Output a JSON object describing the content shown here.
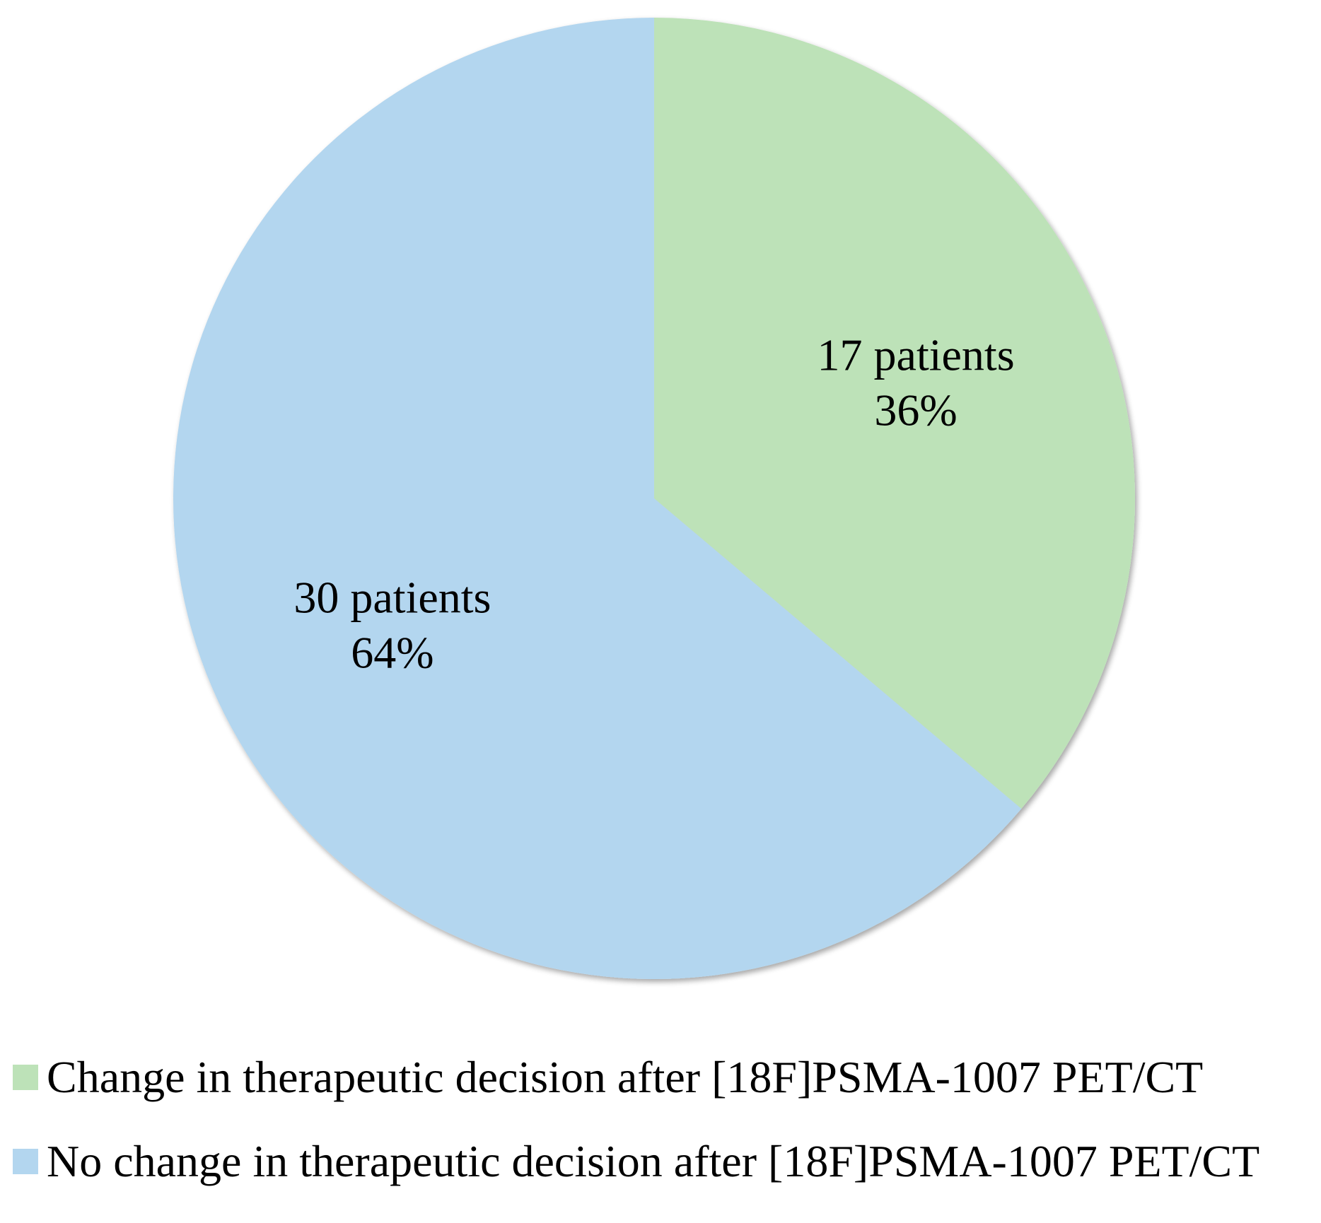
{
  "chart_data": {
    "type": "pie",
    "title": "",
    "start_angle_deg": 0,
    "direction": "clockwise",
    "slices": [
      {
        "label": "Change in therapeutic decision after [18F]PSMA-1007 PET/CT",
        "value": 17,
        "value_text": "17 patients",
        "percent_text": "36%",
        "color": "#bde2b8"
      },
      {
        "label": "No change in therapeutic decision after [18F]PSMA-1007 PET/CT",
        "value": 30,
        "value_text": "30 patients",
        "percent_text": "64%",
        "color": "#b3d6ef"
      }
    ],
    "legend_placement": "bottom-left"
  }
}
